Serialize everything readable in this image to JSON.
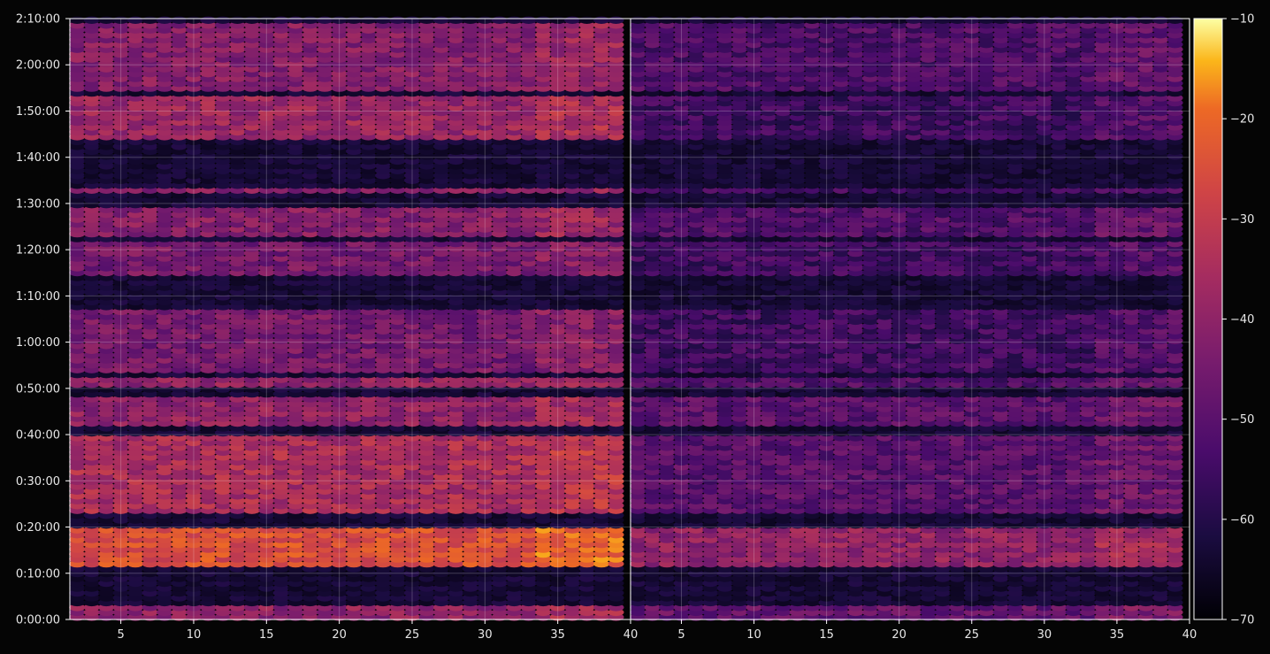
{
  "chart_data": {
    "type": "heatmap",
    "title": "",
    "xlabel": "",
    "ylabel": "",
    "panels": [
      {
        "name": "",
        "x_range": [
          1.5,
          40
        ],
        "x_ticks": [
          5,
          10,
          15,
          20,
          25,
          30,
          35,
          40
        ]
      },
      {
        "name": "",
        "x_range": [
          1.5,
          40
        ],
        "x_ticks": [
          5,
          10,
          15,
          20,
          25,
          30,
          35,
          40
        ]
      }
    ],
    "y_range_minutes": [
      0,
      130
    ],
    "y_ticks": [
      {
        "minutes": 0,
        "label": "0:00:00"
      },
      {
        "minutes": 10,
        "label": "0:10:00"
      },
      {
        "minutes": 20,
        "label": "0:20:00"
      },
      {
        "minutes": 30,
        "label": "0:30:00"
      },
      {
        "minutes": 40,
        "label": "0:40:00"
      },
      {
        "minutes": 50,
        "label": "0:50:00"
      },
      {
        "minutes": 60,
        "label": "1:00:00"
      },
      {
        "minutes": 70,
        "label": "1:10:00"
      },
      {
        "minutes": 80,
        "label": "1:20:00"
      },
      {
        "minutes": 90,
        "label": "1:30:00"
      },
      {
        "minutes": 100,
        "label": "1:40:00"
      },
      {
        "minutes": 110,
        "label": "1:50:00"
      },
      {
        "minutes": 120,
        "label": "2:00:00"
      },
      {
        "minutes": 130,
        "label": "2:10:00"
      }
    ],
    "grid": true,
    "colormap": "inferno",
    "colorbar": {
      "range": [
        -70,
        -10
      ],
      "ticks": [
        {
          "value": -10,
          "label": "−10"
        },
        {
          "value": -20,
          "label": "−20"
        },
        {
          "value": -30,
          "label": "−30"
        },
        {
          "value": -40,
          "label": "−40"
        },
        {
          "value": -50,
          "label": "−50"
        },
        {
          "value": -60,
          "label": "−60"
        },
        {
          "value": -70,
          "label": "−70"
        }
      ]
    },
    "bands_minutes_approx": [
      {
        "start": 0,
        "end": 3,
        "left_level": -40,
        "right_level": -48
      },
      {
        "start": 12,
        "end": 20,
        "left_level": -25,
        "right_level": -40
      },
      {
        "start": 23,
        "end": 40,
        "left_level": -35,
        "right_level": -50
      },
      {
        "start": 42,
        "end": 48,
        "left_level": -40,
        "right_level": -50
      },
      {
        "start": 50,
        "end": 52,
        "left_level": -40,
        "right_level": -52
      },
      {
        "start": 53,
        "end": 67,
        "left_level": -45,
        "right_level": -55
      },
      {
        "start": 74,
        "end": 82,
        "left_level": -45,
        "right_level": -55
      },
      {
        "start": 83,
        "end": 89,
        "left_level": -42,
        "right_level": -52
      },
      {
        "start": 92,
        "end": 93,
        "left_level": -42,
        "right_level": -55
      },
      {
        "start": 104,
        "end": 113,
        "left_level": -38,
        "right_level": -55
      },
      {
        "start": 114,
        "end": 129,
        "left_level": -42,
        "right_level": -52
      }
    ]
  }
}
